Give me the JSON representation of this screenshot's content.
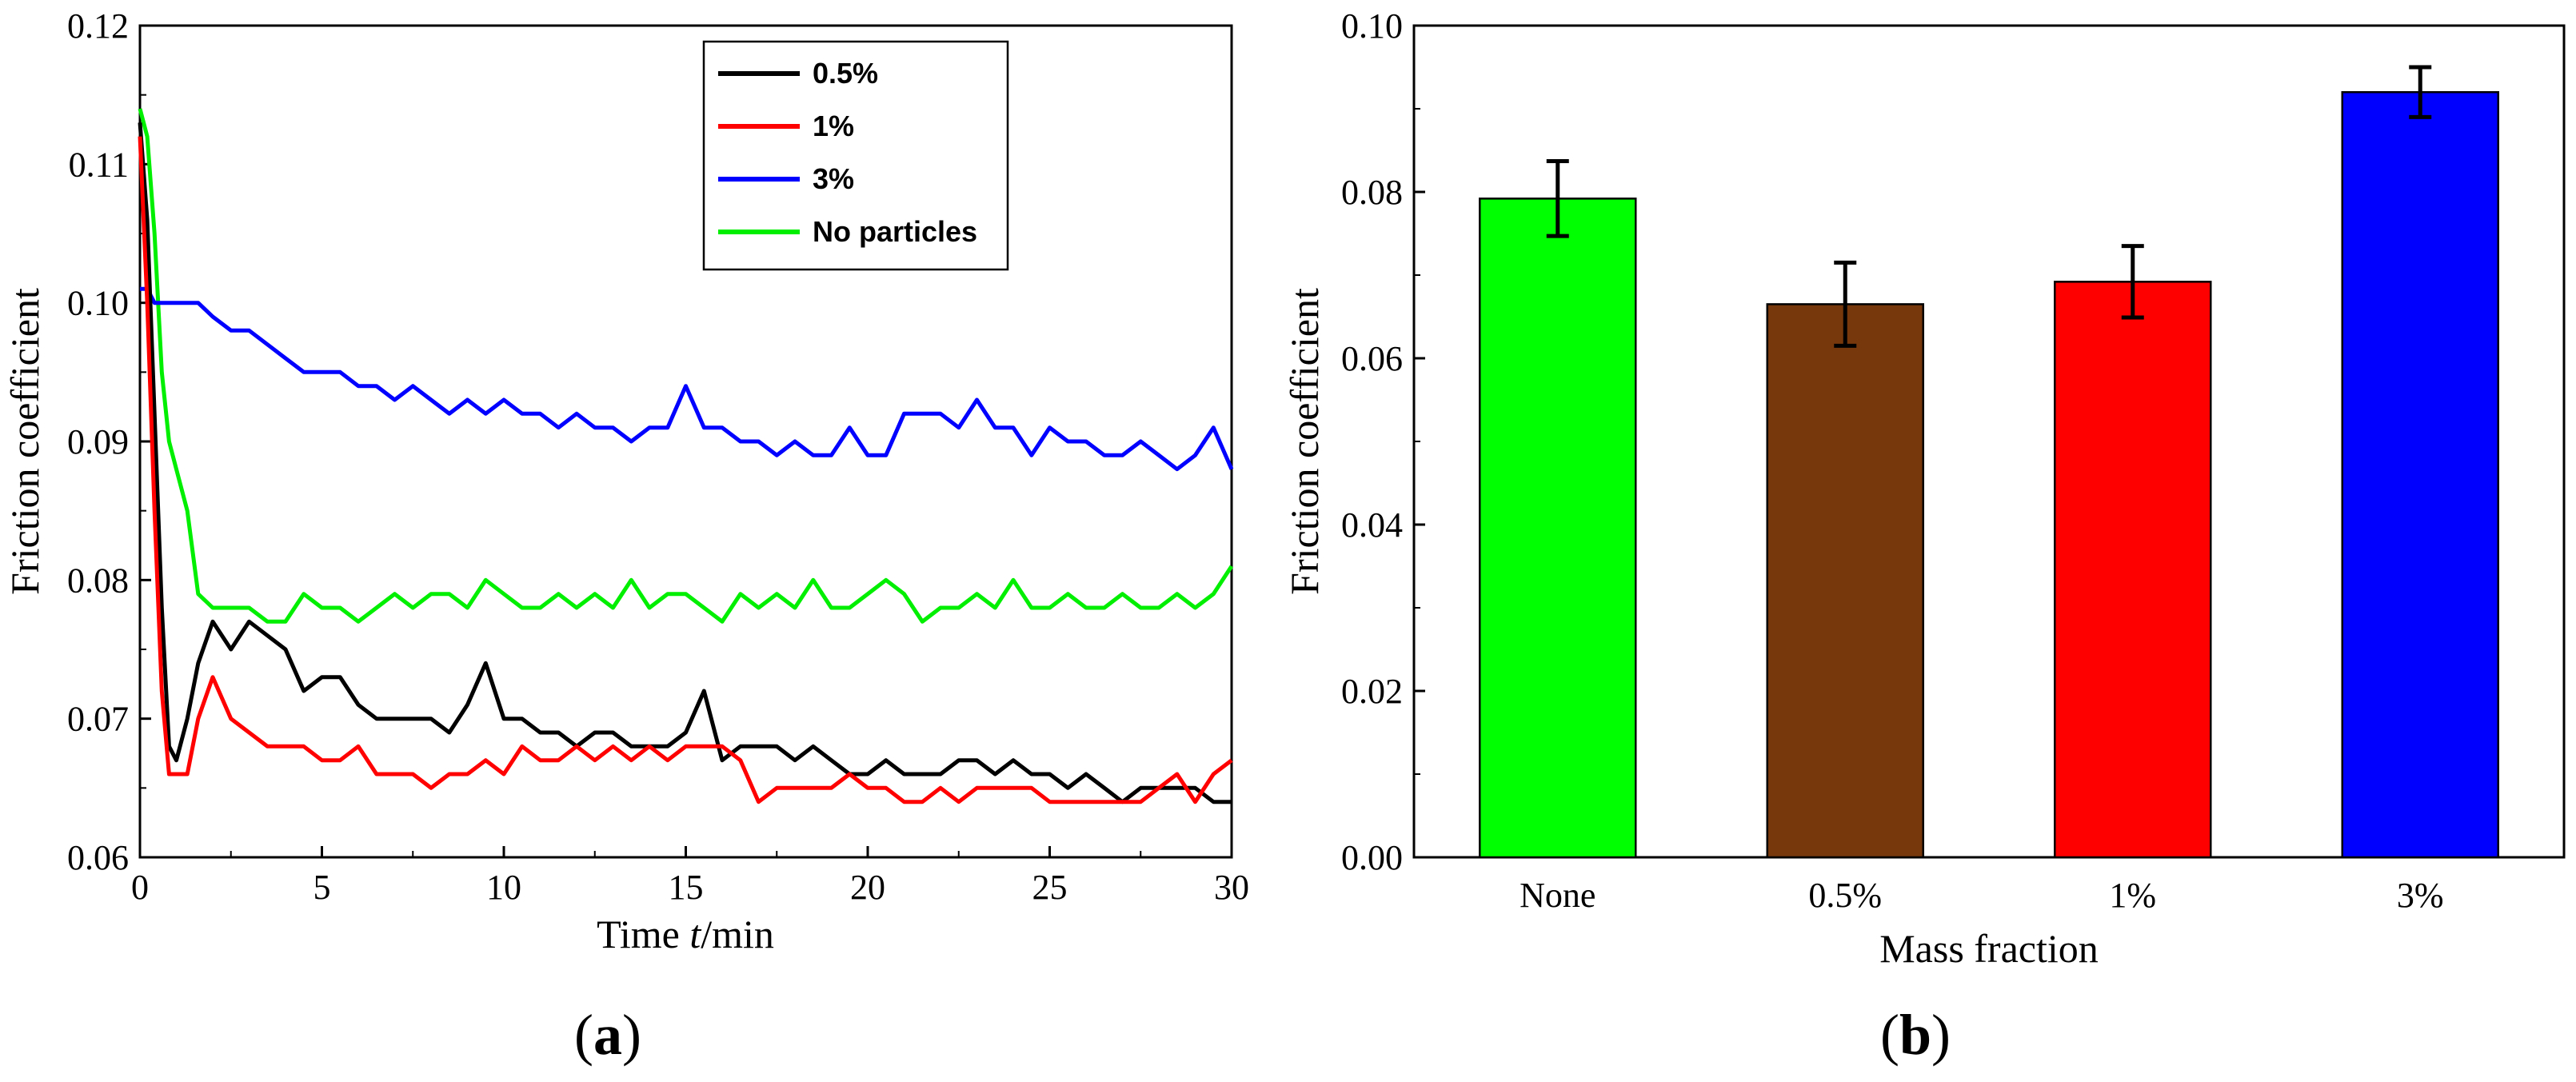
{
  "chart_data": [
    {
      "type": "line",
      "panel_label": "(a)",
      "panel_letter": "a",
      "xlabel_prefix": "Time ",
      "xlabel_italic": "t",
      "xlabel_suffix": "/min",
      "ylabel": "Friction coefficient",
      "xlim": [
        0,
        30
      ],
      "ylim": [
        0.06,
        0.12
      ],
      "xticks": [
        "0",
        "5",
        "10",
        "15",
        "20",
        "25",
        "30"
      ],
      "yticks": [
        "0.06",
        "0.07",
        "0.08",
        "0.09",
        "0.10",
        "0.11",
        "0.12"
      ],
      "legend_position": "top-center",
      "series": [
        {
          "name": "0.5%",
          "color": "#000000",
          "x": [
            0,
            0.2,
            0.4,
            0.6,
            0.8,
            1.0,
            1.3,
            1.6,
            2.0,
            2.5,
            3.0,
            3.5,
            4.0,
            4.5,
            5.0,
            5.5,
            6.0,
            6.5,
            7.0,
            7.5,
            8.0,
            8.5,
            9.0,
            9.5,
            10.0,
            10.5,
            11.0,
            11.5,
            12.0,
            12.5,
            13.0,
            13.5,
            14.0,
            14.5,
            15.0,
            15.5,
            16.0,
            16.5,
            17.0,
            17.5,
            18.0,
            18.5,
            19.0,
            19.5,
            20.0,
            20.5,
            21.0,
            21.5,
            22.0,
            22.5,
            23.0,
            23.5,
            24.0,
            24.5,
            25.0,
            25.5,
            26.0,
            26.5,
            27.0,
            27.5,
            28.0,
            28.5,
            29.0,
            29.5,
            30.0
          ],
          "y": [
            0.113,
            0.106,
            0.092,
            0.078,
            0.068,
            0.067,
            0.07,
            0.074,
            0.077,
            0.075,
            0.077,
            0.076,
            0.075,
            0.072,
            0.073,
            0.073,
            0.071,
            0.07,
            0.07,
            0.07,
            0.07,
            0.069,
            0.071,
            0.074,
            0.07,
            0.07,
            0.069,
            0.069,
            0.068,
            0.069,
            0.069,
            0.068,
            0.068,
            0.068,
            0.069,
            0.072,
            0.067,
            0.068,
            0.068,
            0.068,
            0.067,
            0.068,
            0.067,
            0.066,
            0.066,
            0.067,
            0.066,
            0.066,
            0.066,
            0.067,
            0.067,
            0.066,
            0.067,
            0.066,
            0.066,
            0.065,
            0.066,
            0.065,
            0.064,
            0.065,
            0.065,
            0.065,
            0.065,
            0.064,
            0.064
          ]
        },
        {
          "name": "1%",
          "color": "#ff0000",
          "x": [
            0,
            0.2,
            0.4,
            0.6,
            0.8,
            1.0,
            1.3,
            1.6,
            2.0,
            2.5,
            3.0,
            3.5,
            4.0,
            4.5,
            5.0,
            5.5,
            6.0,
            6.5,
            7.0,
            7.5,
            8.0,
            8.5,
            9.0,
            9.5,
            10.0,
            10.5,
            11.0,
            11.5,
            12.0,
            12.5,
            13.0,
            13.5,
            14.0,
            14.5,
            15.0,
            15.5,
            16.0,
            16.5,
            17.0,
            17.5,
            18.0,
            18.5,
            19.0,
            19.5,
            20.0,
            20.5,
            21.0,
            21.5,
            22.0,
            22.5,
            23.0,
            23.5,
            24.0,
            24.5,
            25.0,
            25.5,
            26.0,
            26.5,
            27.0,
            27.5,
            28.0,
            28.5,
            29.0,
            29.5,
            30.0
          ],
          "y": [
            0.112,
            0.1,
            0.085,
            0.072,
            0.066,
            0.066,
            0.066,
            0.07,
            0.073,
            0.07,
            0.069,
            0.068,
            0.068,
            0.068,
            0.067,
            0.067,
            0.068,
            0.066,
            0.066,
            0.066,
            0.065,
            0.066,
            0.066,
            0.067,
            0.066,
            0.068,
            0.067,
            0.067,
            0.068,
            0.067,
            0.068,
            0.067,
            0.068,
            0.067,
            0.068,
            0.068,
            0.068,
            0.067,
            0.064,
            0.065,
            0.065,
            0.065,
            0.065,
            0.066,
            0.065,
            0.065,
            0.064,
            0.064,
            0.065,
            0.064,
            0.065,
            0.065,
            0.065,
            0.065,
            0.064,
            0.064,
            0.064,
            0.064,
            0.064,
            0.064,
            0.065,
            0.066,
            0.064,
            0.066,
            0.067
          ]
        },
        {
          "name": "3%",
          "color": "#0000ff",
          "x": [
            0,
            0.2,
            0.4,
            0.6,
            0.8,
            1.0,
            1.3,
            1.6,
            2.0,
            2.5,
            3.0,
            3.5,
            4.0,
            4.5,
            5.0,
            5.5,
            6.0,
            6.5,
            7.0,
            7.5,
            8.0,
            8.5,
            9.0,
            9.5,
            10.0,
            10.5,
            11.0,
            11.5,
            12.0,
            12.5,
            13.0,
            13.5,
            14.0,
            14.5,
            15.0,
            15.5,
            16.0,
            16.5,
            17.0,
            17.5,
            18.0,
            18.5,
            19.0,
            19.5,
            20.0,
            20.5,
            21.0,
            21.5,
            22.0,
            22.5,
            23.0,
            23.5,
            24.0,
            24.5,
            25.0,
            25.5,
            26.0,
            26.5,
            27.0,
            27.5,
            28.0,
            28.5,
            29.0,
            29.5,
            30.0
          ],
          "y": [
            0.101,
            0.101,
            0.1,
            0.1,
            0.1,
            0.1,
            0.1,
            0.1,
            0.099,
            0.098,
            0.098,
            0.097,
            0.096,
            0.095,
            0.095,
            0.095,
            0.094,
            0.094,
            0.093,
            0.094,
            0.093,
            0.092,
            0.093,
            0.092,
            0.093,
            0.092,
            0.092,
            0.091,
            0.092,
            0.091,
            0.091,
            0.09,
            0.091,
            0.091,
            0.094,
            0.091,
            0.091,
            0.09,
            0.09,
            0.089,
            0.09,
            0.089,
            0.089,
            0.091,
            0.089,
            0.089,
            0.092,
            0.092,
            0.092,
            0.091,
            0.093,
            0.091,
            0.091,
            0.089,
            0.091,
            0.09,
            0.09,
            0.089,
            0.089,
            0.09,
            0.089,
            0.088,
            0.089,
            0.091,
            0.088
          ]
        },
        {
          "name": "No particles",
          "color": "#00ee00",
          "x": [
            0,
            0.2,
            0.4,
            0.6,
            0.8,
            1.0,
            1.3,
            1.6,
            2.0,
            2.5,
            3.0,
            3.5,
            4.0,
            4.5,
            5.0,
            5.5,
            6.0,
            6.5,
            7.0,
            7.5,
            8.0,
            8.5,
            9.0,
            9.5,
            10.0,
            10.5,
            11.0,
            11.5,
            12.0,
            12.5,
            13.0,
            13.5,
            14.0,
            14.5,
            15.0,
            15.5,
            16.0,
            16.5,
            17.0,
            17.5,
            18.0,
            18.5,
            19.0,
            19.5,
            20.0,
            20.5,
            21.0,
            21.5,
            22.0,
            22.5,
            23.0,
            23.5,
            24.0,
            24.5,
            25.0,
            25.5,
            26.0,
            26.5,
            27.0,
            27.5,
            28.0,
            28.5,
            29.0,
            29.5,
            30.0
          ],
          "y": [
            0.114,
            0.112,
            0.105,
            0.095,
            0.09,
            0.088,
            0.085,
            0.079,
            0.078,
            0.078,
            0.078,
            0.077,
            0.077,
            0.079,
            0.078,
            0.078,
            0.077,
            0.078,
            0.079,
            0.078,
            0.079,
            0.079,
            0.078,
            0.08,
            0.079,
            0.078,
            0.078,
            0.079,
            0.078,
            0.079,
            0.078,
            0.08,
            0.078,
            0.079,
            0.079,
            0.078,
            0.077,
            0.079,
            0.078,
            0.079,
            0.078,
            0.08,
            0.078,
            0.078,
            0.079,
            0.08,
            0.079,
            0.077,
            0.078,
            0.078,
            0.079,
            0.078,
            0.08,
            0.078,
            0.078,
            0.079,
            0.078,
            0.078,
            0.079,
            0.078,
            0.078,
            0.079,
            0.078,
            0.079,
            0.081
          ]
        }
      ]
    },
    {
      "type": "bar",
      "panel_label": "(b)",
      "panel_letter": "b",
      "xlabel": "Mass fraction",
      "ylabel": "Friction coefficient",
      "ylim": [
        0,
        0.1
      ],
      "yticks": [
        "0.00",
        "0.02",
        "0.04",
        "0.06",
        "0.08",
        "0.10"
      ],
      "categories": [
        "None",
        "0.5%",
        "1%",
        "3%"
      ],
      "values": [
        0.0792,
        0.0665,
        0.0692,
        0.092
      ],
      "errors": [
        0.0045,
        0.005,
        0.0043,
        0.003
      ],
      "colors": [
        "#00ff00",
        "#77380c",
        "#ff0000",
        "#0000ff"
      ]
    }
  ]
}
